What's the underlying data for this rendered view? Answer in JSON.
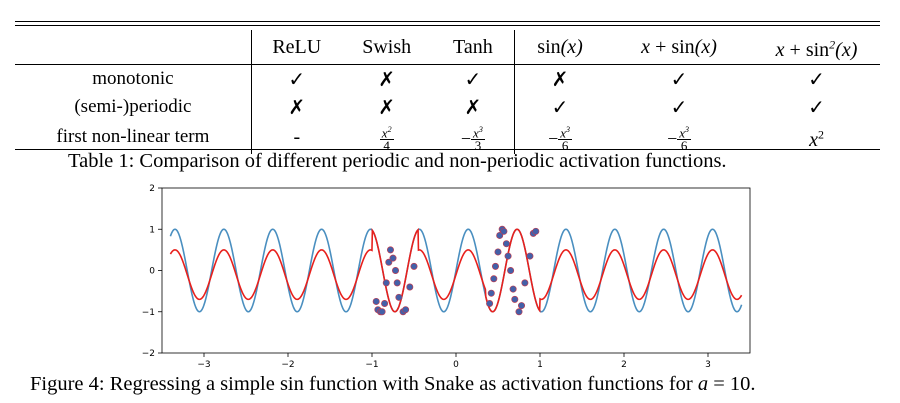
{
  "table": {
    "columns": [
      "",
      "ReLU",
      "Swish",
      "Tanh",
      "sin(x)",
      "x + sin(x)",
      "x + sin²(x)"
    ],
    "rows": [
      {
        "label": "monotonic",
        "cells": [
          "✓",
          "✗",
          "✓",
          "✗",
          "✓",
          "✓"
        ]
      },
      {
        "label": "(semi-)periodic",
        "cells": [
          "✗",
          "✗",
          "✗",
          "✓",
          "✓",
          "✓"
        ]
      },
      {
        "label": "first non-linear term",
        "cells": [
          "-",
          "x²/4",
          "−x³/3",
          "−x³/6",
          "−x³/6",
          "x²"
        ]
      }
    ],
    "caption": "Table 1: Comparison of different periodic and non-periodic activation functions."
  },
  "figure": {
    "caption_prefix": "Figure 4: Regressing a simple sin function with Snake as activation functions for",
    "caption_var": "a",
    "caption_suffix": " = 10.",
    "colors": {
      "target": "#4a8fc0",
      "snake": "#e8201c",
      "points": "#4460a8",
      "points_edge": "#c83a4a"
    }
  },
  "chart_data": {
    "type": "line",
    "xlim": [
      -3.5,
      3.5
    ],
    "ylim": [
      -2,
      2
    ],
    "x_ticks": [
      -3,
      -2,
      -1,
      0,
      1,
      2,
      3
    ],
    "y_ticks": [
      -2,
      -1,
      0,
      1,
      2
    ],
    "x_tick_labels": [
      "−3",
      "−2",
      "−1",
      "0",
      "1",
      "2",
      "3"
    ],
    "y_tick_labels": [
      "−2",
      "−1",
      "0",
      "1",
      "2"
    ],
    "series": [
      {
        "kind": "line",
        "color": "#4a8fc0",
        "function": "sin(omega*x)",
        "omega": 10.8,
        "amplitude": 1.0
      },
      {
        "kind": "line",
        "color": "#e8201c",
        "function": "fit",
        "amplitude_outside": 0.6
      },
      {
        "kind": "scatter",
        "color": "#4460a8",
        "x": [
          -0.95,
          -0.93,
          -0.9,
          -0.88,
          -0.85,
          -0.83,
          -0.8,
          -0.78,
          -0.75,
          -0.72,
          -0.7,
          -0.68,
          -0.63,
          -0.6,
          -0.55,
          -0.5,
          0.4,
          0.42,
          0.45,
          0.47,
          0.5,
          0.52,
          0.55,
          0.57,
          0.6,
          0.62,
          0.65,
          0.68,
          0.7,
          0.75,
          0.78,
          0.82,
          0.88,
          0.92,
          0.95
        ],
        "y": [
          -0.75,
          -0.95,
          -1.0,
          -1.0,
          -0.8,
          -0.3,
          0.2,
          0.5,
          0.3,
          0.0,
          -0.3,
          -0.65,
          -1.0,
          -0.95,
          -0.4,
          0.1,
          -0.8,
          -0.55,
          -0.2,
          0.1,
          0.45,
          0.85,
          1.0,
          0.95,
          0.65,
          0.35,
          0.0,
          -0.45,
          -0.7,
          -1.0,
          -0.85,
          -0.3,
          0.35,
          0.9,
          0.95
        ]
      }
    ]
  }
}
